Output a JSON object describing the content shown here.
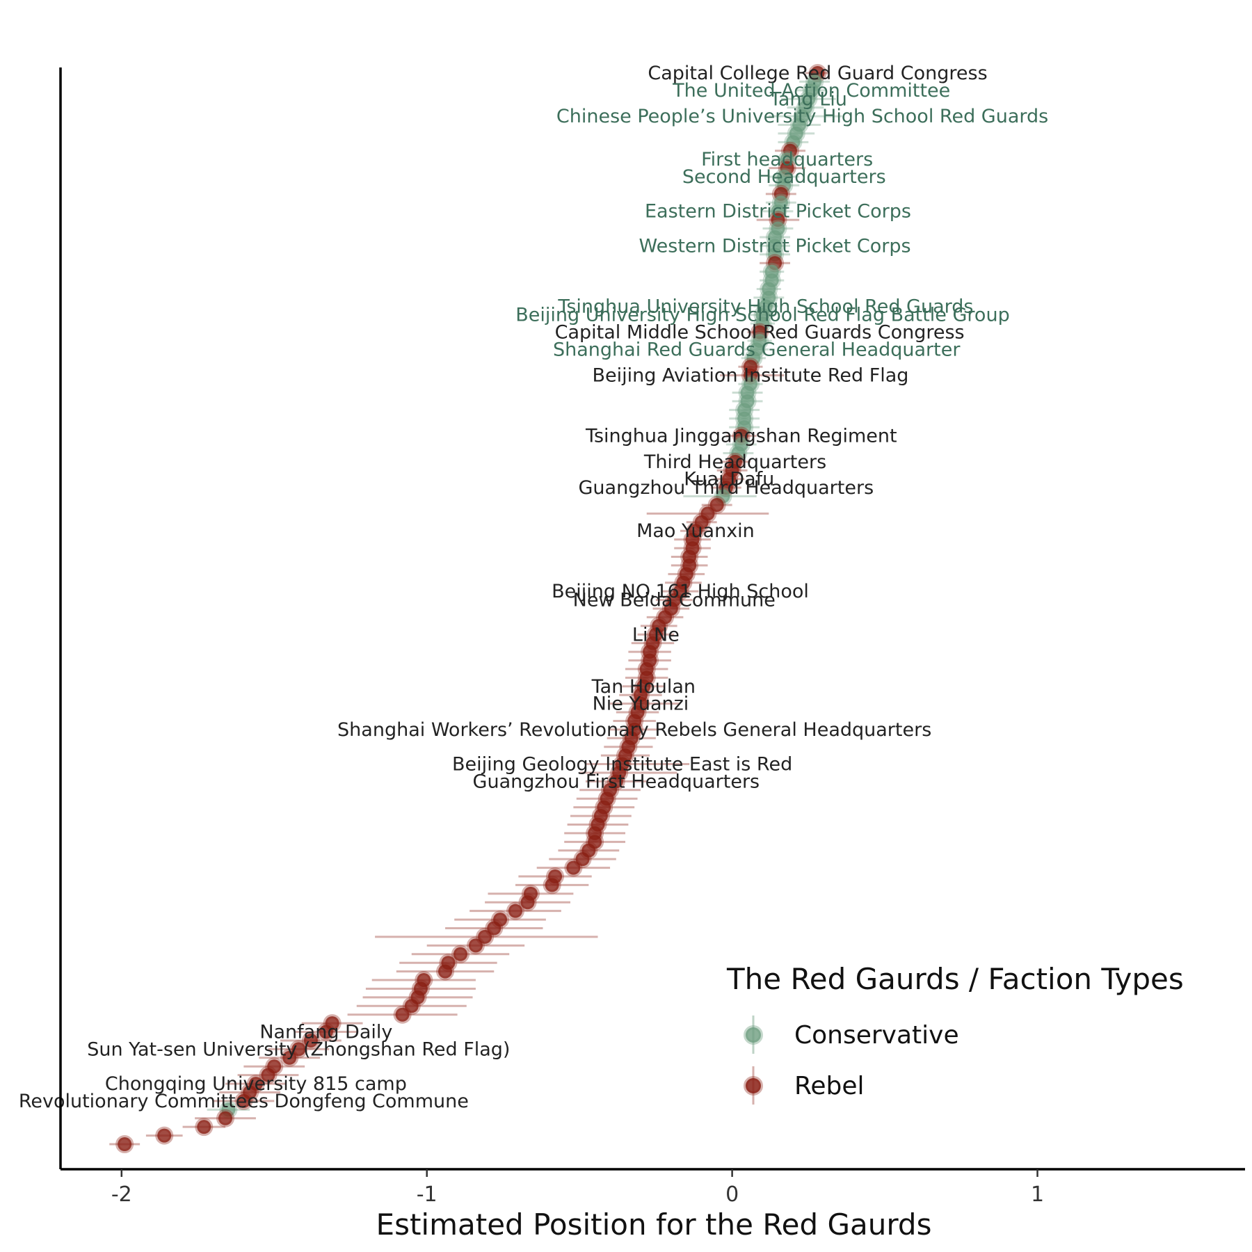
{
  "chart_data": {
    "type": "scatter",
    "xlabel": "Estimated Position for the Red Gaurds",
    "xlim": [
      -2.2,
      1.68
    ],
    "xticks": [
      -2,
      -1,
      0,
      1
    ],
    "xtick_labels": [
      "-2",
      "-1",
      "0",
      "1"
    ],
    "grid": false,
    "legend": {
      "title": "The Red Gaurds / Faction Types",
      "placement": "bottom-right",
      "entries": [
        {
          "key": "conservative",
          "label": "Conservative"
        },
        {
          "key": "rebel",
          "label": "Rebel"
        }
      ]
    },
    "colors": {
      "conservative": "#6e9e80",
      "rebel": "#8a1f14",
      "conservative_label": "#3c6e5a",
      "rebel_label": "#222222"
    },
    "points": [
      {
        "x": 0.28,
        "lo": 0.24,
        "hi": 0.32,
        "f": "rebel",
        "label": "Capital College Red Guard Congress"
      },
      {
        "x": 0.27,
        "lo": 0.22,
        "hi": 0.32,
        "f": "conservative"
      },
      {
        "x": 0.26,
        "lo": 0.21,
        "hi": 0.31,
        "f": "conservative",
        "label": "The United Action Committee"
      },
      {
        "x": 0.25,
        "lo": 0.16,
        "hi": 0.34,
        "f": "conservative",
        "label": "Tang Liu"
      },
      {
        "x": 0.24,
        "lo": 0.18,
        "hi": 0.3,
        "f": "conservative"
      },
      {
        "x": 0.23,
        "lo": 0.12,
        "hi": 0.36,
        "f": "conservative",
        "label": "Chinese People’s University High School Red Guards"
      },
      {
        "x": 0.22,
        "lo": 0.15,
        "hi": 0.29,
        "f": "conservative"
      },
      {
        "x": 0.21,
        "lo": 0.15,
        "hi": 0.27,
        "f": "conservative"
      },
      {
        "x": 0.2,
        "lo": 0.15,
        "hi": 0.25,
        "f": "conservative"
      },
      {
        "x": 0.19,
        "lo": 0.14,
        "hi": 0.24,
        "f": "rebel"
      },
      {
        "x": 0.18,
        "lo": 0.13,
        "hi": 0.23,
        "f": "conservative",
        "label": "First headquarters"
      },
      {
        "x": 0.18,
        "lo": 0.12,
        "hi": 0.24,
        "f": "rebel"
      },
      {
        "x": 0.17,
        "lo": 0.12,
        "hi": 0.22,
        "f": "conservative",
        "label": "Second Headquarters"
      },
      {
        "x": 0.17,
        "lo": 0.12,
        "hi": 0.22,
        "f": "conservative"
      },
      {
        "x": 0.16,
        "lo": 0.11,
        "hi": 0.21,
        "f": "rebel"
      },
      {
        "x": 0.16,
        "lo": 0.11,
        "hi": 0.21,
        "f": "conservative"
      },
      {
        "x": 0.15,
        "lo": 0.1,
        "hi": 0.2,
        "f": "conservative",
        "label": "Eastern District Picket Corps"
      },
      {
        "x": 0.15,
        "lo": 0.08,
        "hi": 0.22,
        "f": "rebel"
      },
      {
        "x": 0.15,
        "lo": 0.1,
        "hi": 0.2,
        "f": "conservative"
      },
      {
        "x": 0.14,
        "lo": 0.09,
        "hi": 0.19,
        "f": "conservative"
      },
      {
        "x": 0.14,
        "lo": 0.09,
        "hi": 0.19,
        "f": "conservative",
        "label": "Western District Picket Corps"
      },
      {
        "x": 0.14,
        "lo": 0.09,
        "hi": 0.19,
        "f": "conservative"
      },
      {
        "x": 0.14,
        "lo": 0.09,
        "hi": 0.19,
        "f": "rebel"
      },
      {
        "x": 0.13,
        "lo": 0.09,
        "hi": 0.17,
        "f": "conservative"
      },
      {
        "x": 0.13,
        "lo": 0.09,
        "hi": 0.17,
        "f": "conservative"
      },
      {
        "x": 0.12,
        "lo": 0.08,
        "hi": 0.16,
        "f": "conservative"
      },
      {
        "x": 0.12,
        "lo": 0.07,
        "hi": 0.17,
        "f": "conservative"
      },
      {
        "x": 0.11,
        "lo": 0.07,
        "hi": 0.15,
        "f": "conservative",
        "label": "Tsinghua University High School Red Guards"
      },
      {
        "x": 0.1,
        "lo": 0.06,
        "hi": 0.14,
        "f": "conservative",
        "label": "Beijing University High School Red Flag Battle Group"
      },
      {
        "x": 0.1,
        "lo": 0.06,
        "hi": 0.14,
        "f": "conservative"
      },
      {
        "x": 0.09,
        "lo": 0.05,
        "hi": 0.13,
        "f": "rebel",
        "label": "Capital Middle School Red Guards Congress"
      },
      {
        "x": 0.09,
        "lo": 0.05,
        "hi": 0.13,
        "f": "conservative"
      },
      {
        "x": 0.08,
        "lo": 0.04,
        "hi": 0.12,
        "f": "conservative",
        "label": "Shanghai Red Guards General Headquarter"
      },
      {
        "x": 0.07,
        "lo": 0.03,
        "hi": 0.11,
        "f": "conservative"
      },
      {
        "x": 0.06,
        "lo": 0.02,
        "hi": 0.1,
        "f": "rebel"
      },
      {
        "x": 0.06,
        "lo": -0.04,
        "hi": 0.17,
        "f": "rebel",
        "label": "Beijing Aviation Institute Red Flag"
      },
      {
        "x": 0.06,
        "lo": 0.02,
        "hi": 0.1,
        "f": "conservative"
      },
      {
        "x": 0.05,
        "lo": 0.0,
        "hi": 0.1,
        "f": "conservative"
      },
      {
        "x": 0.05,
        "lo": 0.0,
        "hi": 0.1,
        "f": "conservative"
      },
      {
        "x": 0.04,
        "lo": -0.01,
        "hi": 0.09,
        "f": "conservative"
      },
      {
        "x": 0.04,
        "lo": -0.01,
        "hi": 0.09,
        "f": "conservative"
      },
      {
        "x": 0.04,
        "lo": -0.01,
        "hi": 0.09,
        "f": "conservative"
      },
      {
        "x": 0.03,
        "lo": -0.02,
        "hi": 0.08,
        "f": "rebel",
        "label": "Tsinghua Jinggangshan Regiment"
      },
      {
        "x": 0.03,
        "lo": -0.02,
        "hi": 0.08,
        "f": "conservative"
      },
      {
        "x": 0.02,
        "lo": -0.03,
        "hi": 0.07,
        "f": "conservative"
      },
      {
        "x": 0.01,
        "lo": -0.04,
        "hi": 0.06,
        "f": "rebel",
        "label": "Third Headquarters"
      },
      {
        "x": 0.0,
        "lo": -0.05,
        "hi": 0.05,
        "f": "rebel"
      },
      {
        "x": -0.01,
        "lo": -0.06,
        "hi": 0.04,
        "f": "rebel",
        "label": "Kuai Dafu"
      },
      {
        "x": -0.02,
        "lo": -0.07,
        "hi": 0.03,
        "f": "rebel",
        "label": "Guangzhou Third Headquarters"
      },
      {
        "x": -0.03,
        "lo": -0.16,
        "hi": 0.08,
        "f": "conservative"
      },
      {
        "x": -0.05,
        "lo": -0.1,
        "hi": 0.0,
        "f": "rebel"
      },
      {
        "x": -0.08,
        "lo": -0.28,
        "hi": 0.12,
        "f": "rebel"
      },
      {
        "x": -0.1,
        "lo": -0.15,
        "hi": -0.05,
        "f": "rebel"
      },
      {
        "x": -0.12,
        "lo": -0.17,
        "hi": -0.07,
        "f": "rebel",
        "label": "Mao Yuanxin"
      },
      {
        "x": -0.13,
        "lo": -0.19,
        "hi": -0.07,
        "f": "rebel"
      },
      {
        "x": -0.13,
        "lo": -0.19,
        "hi": -0.07,
        "f": "rebel"
      },
      {
        "x": -0.14,
        "lo": -0.2,
        "hi": -0.08,
        "f": "rebel"
      },
      {
        "x": -0.14,
        "lo": -0.2,
        "hi": -0.08,
        "f": "rebel"
      },
      {
        "x": -0.15,
        "lo": -0.21,
        "hi": -0.09,
        "f": "rebel"
      },
      {
        "x": -0.16,
        "lo": -0.22,
        "hi": -0.1,
        "f": "rebel"
      },
      {
        "x": -0.17,
        "lo": -0.23,
        "hi": -0.11,
        "f": "rebel",
        "label": "Beijing NO.161 High School"
      },
      {
        "x": -0.19,
        "lo": -0.25,
        "hi": -0.13,
        "f": "rebel",
        "label": "New Beida Commune"
      },
      {
        "x": -0.2,
        "lo": -0.26,
        "hi": -0.14,
        "f": "rebel"
      },
      {
        "x": -0.22,
        "lo": -0.28,
        "hi": -0.16,
        "f": "rebel"
      },
      {
        "x": -0.24,
        "lo": -0.3,
        "hi": -0.18,
        "f": "rebel"
      },
      {
        "x": -0.25,
        "lo": -0.31,
        "hi": -0.19,
        "f": "rebel",
        "label": "Li Ne"
      },
      {
        "x": -0.26,
        "lo": -0.33,
        "hi": -0.19,
        "f": "rebel"
      },
      {
        "x": -0.27,
        "lo": -0.34,
        "hi": -0.2,
        "f": "rebel"
      },
      {
        "x": -0.27,
        "lo": -0.34,
        "hi": -0.2,
        "f": "rebel"
      },
      {
        "x": -0.28,
        "lo": -0.35,
        "hi": -0.21,
        "f": "rebel"
      },
      {
        "x": -0.28,
        "lo": -0.35,
        "hi": -0.21,
        "f": "rebel"
      },
      {
        "x": -0.29,
        "lo": -0.36,
        "hi": -0.22,
        "f": "rebel",
        "label": "Tan Houlan"
      },
      {
        "x": -0.3,
        "lo": -0.37,
        "hi": -0.23,
        "f": "rebel"
      },
      {
        "x": -0.3,
        "lo": -0.4,
        "hi": -0.17,
        "f": "rebel",
        "label": "Nie Yuanzi"
      },
      {
        "x": -0.31,
        "lo": -0.38,
        "hi": -0.24,
        "f": "rebel"
      },
      {
        "x": -0.32,
        "lo": -0.39,
        "hi": -0.25,
        "f": "rebel"
      },
      {
        "x": -0.32,
        "lo": -0.4,
        "hi": -0.24,
        "f": "rebel",
        "label": "Shanghai Workers’ Revolutionary Rebels General Headquarters"
      },
      {
        "x": -0.33,
        "lo": -0.41,
        "hi": -0.25,
        "f": "rebel"
      },
      {
        "x": -0.34,
        "lo": -0.42,
        "hi": -0.26,
        "f": "rebel"
      },
      {
        "x": -0.35,
        "lo": -0.43,
        "hi": -0.27,
        "f": "rebel"
      },
      {
        "x": -0.36,
        "lo": -0.48,
        "hi": -0.14,
        "f": "rebel",
        "label": "Beijing Geology Institute East is Red"
      },
      {
        "x": -0.37,
        "lo": -0.5,
        "hi": -0.18,
        "f": "rebel"
      },
      {
        "x": -0.38,
        "lo": -0.48,
        "hi": -0.28,
        "f": "rebel",
        "label": "Guangzhou First Headquarters"
      },
      {
        "x": -0.4,
        "lo": -0.5,
        "hi": -0.3,
        "f": "rebel"
      },
      {
        "x": -0.41,
        "lo": -0.51,
        "hi": -0.31,
        "f": "rebel"
      },
      {
        "x": -0.42,
        "lo": -0.52,
        "hi": -0.32,
        "f": "rebel"
      },
      {
        "x": -0.43,
        "lo": -0.53,
        "hi": -0.33,
        "f": "rebel"
      },
      {
        "x": -0.44,
        "lo": -0.54,
        "hi": -0.34,
        "f": "rebel"
      },
      {
        "x": -0.45,
        "lo": -0.55,
        "hi": -0.35,
        "f": "rebel"
      },
      {
        "x": -0.45,
        "lo": -0.55,
        "hi": -0.35,
        "f": "rebel"
      },
      {
        "x": -0.47,
        "lo": -0.57,
        "hi": -0.37,
        "f": "rebel"
      },
      {
        "x": -0.49,
        "lo": -0.6,
        "hi": -0.38,
        "f": "rebel"
      },
      {
        "x": -0.52,
        "lo": -0.64,
        "hi": -0.4,
        "f": "rebel"
      },
      {
        "x": -0.58,
        "lo": -0.7,
        "hi": -0.46,
        "f": "rebel"
      },
      {
        "x": -0.59,
        "lo": -0.71,
        "hi": -0.47,
        "f": "rebel"
      },
      {
        "x": -0.66,
        "lo": -0.8,
        "hi": -0.52,
        "f": "rebel"
      },
      {
        "x": -0.67,
        "lo": -0.81,
        "hi": -0.53,
        "f": "rebel"
      },
      {
        "x": -0.71,
        "lo": -0.86,
        "hi": -0.56,
        "f": "rebel"
      },
      {
        "x": -0.76,
        "lo": -0.91,
        "hi": -0.61,
        "f": "rebel"
      },
      {
        "x": -0.78,
        "lo": -0.94,
        "hi": -0.62,
        "f": "rebel"
      },
      {
        "x": -0.81,
        "lo": -1.17,
        "hi": -0.44,
        "f": "rebel"
      },
      {
        "x": -0.84,
        "lo": -1.0,
        "hi": -0.68,
        "f": "rebel"
      },
      {
        "x": -0.89,
        "lo": -1.05,
        "hi": -0.73,
        "f": "rebel"
      },
      {
        "x": -0.93,
        "lo": -1.09,
        "hi": -0.77,
        "f": "rebel"
      },
      {
        "x": -0.94,
        "lo": -1.1,
        "hi": -0.78,
        "f": "rebel"
      },
      {
        "x": -1.01,
        "lo": -1.18,
        "hi": -0.84,
        "f": "rebel"
      },
      {
        "x": -1.02,
        "lo": -1.2,
        "hi": -0.84,
        "f": "rebel"
      },
      {
        "x": -1.03,
        "lo": -1.21,
        "hi": -0.85,
        "f": "rebel"
      },
      {
        "x": -1.05,
        "lo": -1.23,
        "hi": -0.87,
        "f": "rebel"
      },
      {
        "x": -1.08,
        "lo": -1.26,
        "hi": -0.9,
        "f": "rebel"
      },
      {
        "x": -1.31,
        "lo": -1.41,
        "hi": -1.21,
        "f": "rebel"
      },
      {
        "x": -1.33,
        "lo": -1.43,
        "hi": -1.23,
        "f": "rebel",
        "label": "Nanfang Daily"
      },
      {
        "x": -1.38,
        "lo": -1.48,
        "hi": -1.28,
        "f": "rebel"
      },
      {
        "x": -1.42,
        "lo": -1.52,
        "hi": -1.32,
        "f": "rebel",
        "label": "Sun Yat-sen University (Zhongshan Red Flag)"
      },
      {
        "x": -1.45,
        "lo": -1.55,
        "hi": -1.35,
        "f": "rebel"
      },
      {
        "x": -1.5,
        "lo": -1.6,
        "hi": -1.4,
        "f": "rebel"
      },
      {
        "x": -1.52,
        "lo": -1.62,
        "hi": -1.42,
        "f": "rebel"
      },
      {
        "x": -1.56,
        "lo": -1.66,
        "hi": -1.46,
        "f": "rebel",
        "label": "Chongqing University 815 camp"
      },
      {
        "x": -1.58,
        "lo": -1.68,
        "hi": -1.48,
        "f": "rebel"
      },
      {
        "x": -1.6,
        "lo": -1.7,
        "hi": -1.5,
        "f": "rebel",
        "label": "Revolutionary Committees Dongfeng Commune"
      },
      {
        "x": -1.65,
        "lo": -1.72,
        "hi": -1.58,
        "f": "conservative"
      },
      {
        "x": -1.66,
        "lo": -1.76,
        "hi": -1.56,
        "f": "rebel"
      },
      {
        "x": -1.73,
        "lo": -1.8,
        "hi": -1.66,
        "f": "rebel"
      },
      {
        "x": -1.86,
        "lo": -1.92,
        "hi": -1.8,
        "f": "rebel"
      },
      {
        "x": -1.99,
        "lo": -2.04,
        "hi": -1.94,
        "f": "rebel"
      }
    ]
  }
}
